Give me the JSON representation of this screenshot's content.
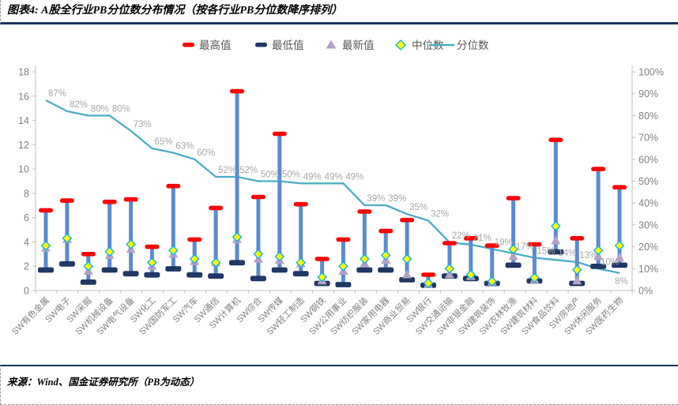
{
  "header": {
    "title": "图表4: A股全行业PB分位数分布情况（按各行业PB分位数降序排列）"
  },
  "footer": {
    "source": "来源：Wind、国金证券研究所（PB为动态）"
  },
  "chart_data": {
    "type": "combo-range-line",
    "title": "A股全行业PB分位数分布",
    "legend_position": "top",
    "grid": false,
    "left_axis": {
      "min": 0,
      "max": 18,
      "step": 2
    },
    "right_axis": {
      "min": 0,
      "max": 100,
      "step": 10,
      "suffix": "%"
    },
    "categories": [
      "SW有色金属",
      "SW电子",
      "SW采掘",
      "SW机械设备",
      "SW电气设备",
      "SW化工",
      "SW国防军工",
      "SW汽车",
      "SW通信",
      "SW计算机",
      "SW综合",
      "SW传媒",
      "SW轻工制造",
      "SW钢铁",
      "SW公用事业",
      "SW纺织服装",
      "SW家用电器",
      "SW商业贸易",
      "SW银行",
      "SW交通运输",
      "SW非银金融",
      "SW建筑装饰",
      "SW农林牧渔",
      "SW建筑材料",
      "SW食品饮料",
      "SW房地产",
      "SW休闲服务",
      "SW医药生物"
    ],
    "series": [
      {
        "name": "最高值",
        "role": "high",
        "marker": "cap",
        "color": "#FF0000",
        "values": [
          6.6,
          7.4,
          3.0,
          7.3,
          7.5,
          3.6,
          8.6,
          4.2,
          6.8,
          16.4,
          7.7,
          12.9,
          7.1,
          2.6,
          4.2,
          6.5,
          4.9,
          5.8,
          1.3,
          3.9,
          4.3,
          3.7,
          7.6,
          3.8,
          12.4,
          4.3,
          10.0,
          8.5
        ]
      },
      {
        "name": "最低值",
        "role": "low",
        "marker": "cap",
        "color": "#1F3864",
        "values": [
          1.7,
          2.2,
          0.7,
          1.7,
          1.4,
          1.3,
          1.8,
          1.3,
          1.2,
          2.3,
          1.0,
          1.7,
          1.4,
          0.6,
          0.5,
          1.7,
          1.7,
          0.9,
          0.45,
          1.2,
          1.0,
          0.6,
          2.1,
          0.8,
          3.2,
          0.6,
          2.0,
          2.1
        ]
      },
      {
        "name": "最新值",
        "role": "latest",
        "marker": "triangle",
        "color": "#B3A2C7",
        "values": [
          3.5,
          4.2,
          1.6,
          2.9,
          3.4,
          2.0,
          3.0,
          2.4,
          2.3,
          4.2,
          2.6,
          2.5,
          2.2,
          0.8,
          1.6,
          2.2,
          2.5,
          1.3,
          0.5,
          1.3,
          1.15,
          0.7,
          2.8,
          0.9,
          4.1,
          0.8,
          2.8,
          2.7
        ]
      },
      {
        "name": "中位数",
        "role": "median",
        "marker": "diamond",
        "color": "#FFFF00",
        "border": "#00B0F0",
        "values": [
          3.7,
          4.3,
          2.0,
          3.2,
          3.8,
          2.3,
          3.3,
          2.6,
          2.3,
          4.4,
          3.0,
          2.8,
          2.3,
          1.1,
          2.0,
          2.6,
          2.9,
          2.6,
          0.6,
          1.8,
          1.3,
          0.75,
          3.4,
          1.05,
          5.3,
          1.7,
          3.3,
          3.7
        ]
      },
      {
        "name": "分位数",
        "role": "percentile",
        "marker": "line",
        "axis": "right",
        "color": "#4BACC6",
        "unit": "%",
        "values": [
          87,
          82,
          80,
          80,
          73,
          65,
          63,
          60,
          52,
          52,
          50,
          50,
          49,
          49,
          49,
          39,
          39,
          35,
          32,
          22,
          21,
          19,
          17,
          15,
          14,
          13,
          10,
          8
        ]
      }
    ],
    "colors": {
      "connector": "#5B8BD0",
      "axis": "#BFBFBF",
      "tick_text": "#808080",
      "category_text": "#808080",
      "pct_label": "#A6A6A6",
      "legend_text": "#595959",
      "accent_border": "#17365D"
    }
  }
}
